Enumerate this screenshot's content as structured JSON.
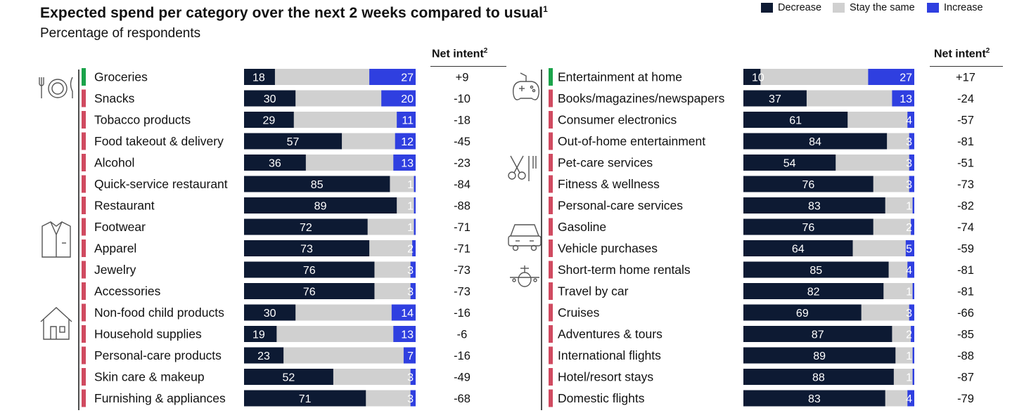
{
  "header": {
    "title": "Expected spend per category over the next 2 weeks compared to usual",
    "title_footnote": "1",
    "subtitle": "Percentage of respondents",
    "net_intent_label": "Net intent",
    "net_intent_footnote": "2"
  },
  "legend": [
    {
      "label": "Decrease",
      "color": "#0d1a33"
    },
    {
      "label": "Stay the same",
      "color": "#d0d0d0"
    },
    {
      "label": "Increase",
      "color": "#2f3fe0"
    }
  ],
  "colors": {
    "decrease": "#0d1a33",
    "same": "#d0d0d0",
    "increase": "#2f3fe0",
    "positive_marker": "#1aa34a",
    "negative_marker": "#d04a60"
  },
  "chart_data": [
    {
      "type": "bar",
      "stacked": true,
      "orientation": "horizontal",
      "series_names": [
        "Decrease",
        "Stay the same",
        "Increase"
      ],
      "groups": [
        {
          "icon": "dining-icon",
          "categories": [
            "Groceries",
            "Snacks",
            "Tobacco products",
            "Food takeout & delivery",
            "Alcohol",
            "Quick-service restaurant",
            "Restaurant"
          ]
        },
        {
          "icon": "clothing-icon",
          "categories": [
            "Footwear",
            "Apparel",
            "Jewelry",
            "Accessories"
          ]
        },
        {
          "icon": "house-icon",
          "categories": [
            "Non-food child products",
            "Household supplies",
            "Personal-care products",
            "Skin care & makeup",
            "Furnishing & appliances"
          ]
        }
      ],
      "categories": [
        "Groceries",
        "Snacks",
        "Tobacco products",
        "Food takeout & delivery",
        "Alcohol",
        "Quick-service restaurant",
        "Restaurant",
        "Footwear",
        "Apparel",
        "Jewelry",
        "Accessories",
        "Non-food child products",
        "Household supplies",
        "Personal-care products",
        "Skin care & makeup",
        "Furnishing & appliances"
      ],
      "decrease": [
        18,
        30,
        29,
        57,
        36,
        85,
        89,
        72,
        73,
        76,
        76,
        30,
        19,
        23,
        52,
        71
      ],
      "increase": [
        27,
        20,
        11,
        12,
        13,
        1,
        1,
        1,
        2,
        3,
        3,
        14,
        13,
        7,
        3,
        3
      ],
      "net_intent": [
        "+9",
        "-10",
        "-18",
        "-45",
        "-23",
        "-84",
        "-88",
        "-71",
        "-71",
        "-73",
        "-73",
        "-16",
        "-6",
        "-16",
        "-49",
        "-68"
      ],
      "xlim": [
        0,
        100
      ]
    },
    {
      "type": "bar",
      "stacked": true,
      "orientation": "horizontal",
      "series_names": [
        "Decrease",
        "Stay the same",
        "Increase"
      ],
      "groups": [
        {
          "icon": "gamepad-icon",
          "categories": [
            "Entertainment at home",
            "Books/magazines/newspapers",
            "Consumer electronics",
            "Out-of-home entertainment"
          ]
        },
        {
          "icon": "scissors-icon",
          "categories": [
            "Pet-care services",
            "Fitness & wellness",
            "Personal-care services"
          ]
        },
        {
          "icon": "car-icon",
          "categories": [
            "Gasoline",
            "Vehicle purchases"
          ]
        },
        {
          "icon": "airplane-icon",
          "categories": [
            "Short-term home rentals",
            "Travel by car",
            "Cruises",
            "Adventures & tours",
            "International flights",
            "Hotel/resort stays",
            "Domestic flights"
          ]
        }
      ],
      "categories": [
        "Entertainment at home",
        "Books/magazines/newspapers",
        "Consumer electronics",
        "Out-of-home entertainment",
        "Pet-care services",
        "Fitness & wellness",
        "Personal-care services",
        "Gasoline",
        "Vehicle purchases",
        "Short-term home rentals",
        "Travel by car",
        "Cruises",
        "Adventures & tours",
        "International flights",
        "Hotel/resort stays",
        "Domestic flights"
      ],
      "decrease": [
        10,
        37,
        61,
        84,
        54,
        76,
        83,
        76,
        64,
        85,
        82,
        69,
        87,
        89,
        88,
        83
      ],
      "increase": [
        27,
        13,
        4,
        3,
        3,
        3,
        1,
        2,
        5,
        4,
        1,
        3,
        2,
        1,
        1,
        4
      ],
      "net_intent": [
        "+17",
        "-24",
        "-57",
        "-81",
        "-51",
        "-73",
        "-82",
        "-74",
        "-59",
        "-81",
        "-81",
        "-66",
        "-85",
        "-88",
        "-87",
        "-79"
      ],
      "xlim": [
        0,
        100
      ]
    }
  ]
}
